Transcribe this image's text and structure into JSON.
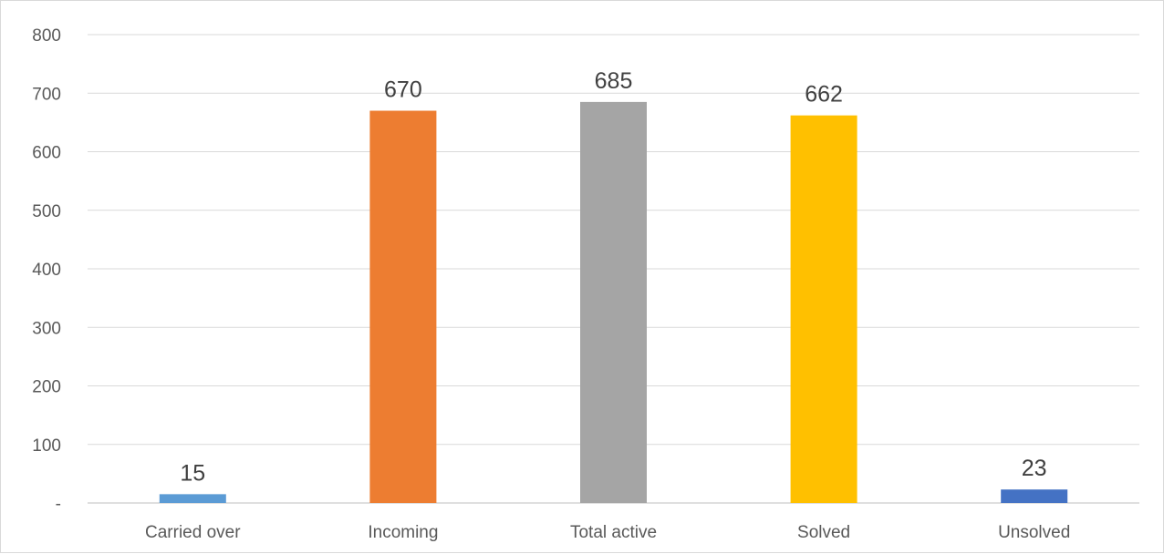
{
  "chart_data": {
    "type": "bar",
    "title": "",
    "xlabel": "",
    "ylabel": "",
    "categories": [
      "Carried over",
      "Incoming",
      "Total active",
      "Solved",
      "Unsolved"
    ],
    "values": [
      15,
      670,
      685,
      662,
      23
    ],
    "data_labels": [
      "15",
      "670",
      "685",
      "662",
      "23"
    ],
    "colors": [
      "#5b9bd5",
      "#ed7d31",
      "#a5a5a5",
      "#ffc000",
      "#4472c4"
    ],
    "ylim": [
      0,
      800
    ],
    "yticks": [
      0,
      100,
      200,
      300,
      400,
      500,
      600,
      700,
      800
    ],
    "ytick_labels": [
      "-",
      "100",
      "200",
      "300",
      "400",
      "500",
      "600",
      "700",
      "800"
    ],
    "grid": true,
    "legend": "none"
  }
}
